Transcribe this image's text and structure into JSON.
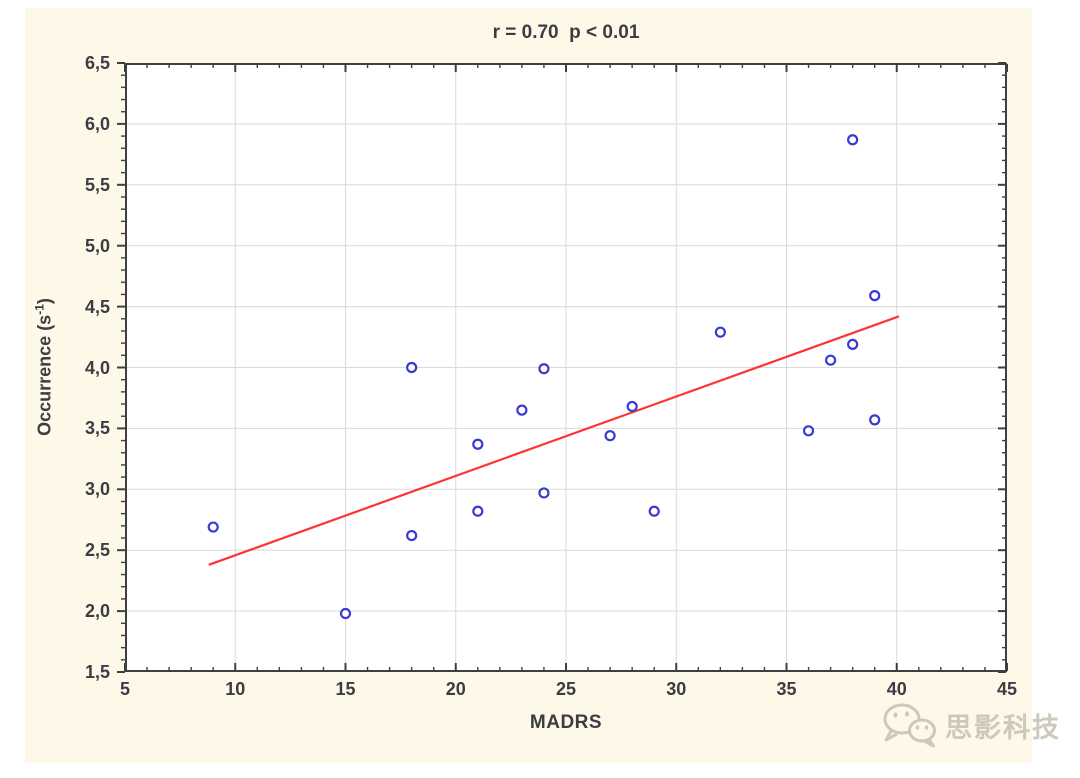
{
  "chart_data": {
    "type": "scatter",
    "title": "r = 0.70  p < 0.01",
    "xlabel": "MADRS",
    "ylabel": "Occurrence (s⁻¹)",
    "ylabel_parts": {
      "prefix": "Occurrence (s",
      "sup": "-1",
      "suffix": ")"
    },
    "xlim": [
      5,
      45
    ],
    "ylim": [
      1.5,
      6.5
    ],
    "x_ticks": [
      5,
      10,
      15,
      20,
      25,
      30,
      35,
      40,
      45
    ],
    "x_tick_labels": [
      "5",
      "10",
      "15",
      "20",
      "25",
      "30",
      "35",
      "40",
      "45"
    ],
    "x_minor_step": 1,
    "y_ticks": [
      1.5,
      2.0,
      2.5,
      3.0,
      3.5,
      4.0,
      4.5,
      5.0,
      5.5,
      6.0,
      6.5
    ],
    "y_tick_labels": [
      "1,5",
      "2,0",
      "2,5",
      "3,0",
      "3,5",
      "4,0",
      "4,5",
      "5,0",
      "5,5",
      "6,0",
      "6,5"
    ],
    "y_minor_step": 0.1,
    "grid": true,
    "legend": null,
    "points": [
      [
        9,
        2.69
      ],
      [
        15,
        1.98
      ],
      [
        18,
        4.0
      ],
      [
        18,
        2.62
      ],
      [
        21,
        3.37
      ],
      [
        21,
        2.82
      ],
      [
        23,
        3.65
      ],
      [
        24,
        3.99
      ],
      [
        24,
        2.97
      ],
      [
        27,
        3.44
      ],
      [
        28,
        3.68
      ],
      [
        29,
        2.82
      ],
      [
        32,
        4.29
      ],
      [
        36,
        3.48
      ],
      [
        37,
        4.06
      ],
      [
        38,
        5.87
      ],
      [
        38,
        4.19
      ],
      [
        39,
        4.59
      ],
      [
        39,
        3.57
      ]
    ],
    "trend_line": {
      "x_start": 8.8,
      "y_start": 2.38,
      "x_end": 40.1,
      "y_end": 4.42
    },
    "colors": {
      "point_stroke": "#3a3ad1",
      "point_fill": "#ffffff",
      "trend": "#ff3333",
      "grid": "#d9d9d9",
      "frame": "#3f3f3f",
      "text": "#3c3c44",
      "panel_bg": "#fdf8e7",
      "plot_bg": "#ffffff"
    }
  },
  "watermark": {
    "text": "思影科技",
    "icon": "wechat-icon",
    "color": "#c7c2b2"
  }
}
